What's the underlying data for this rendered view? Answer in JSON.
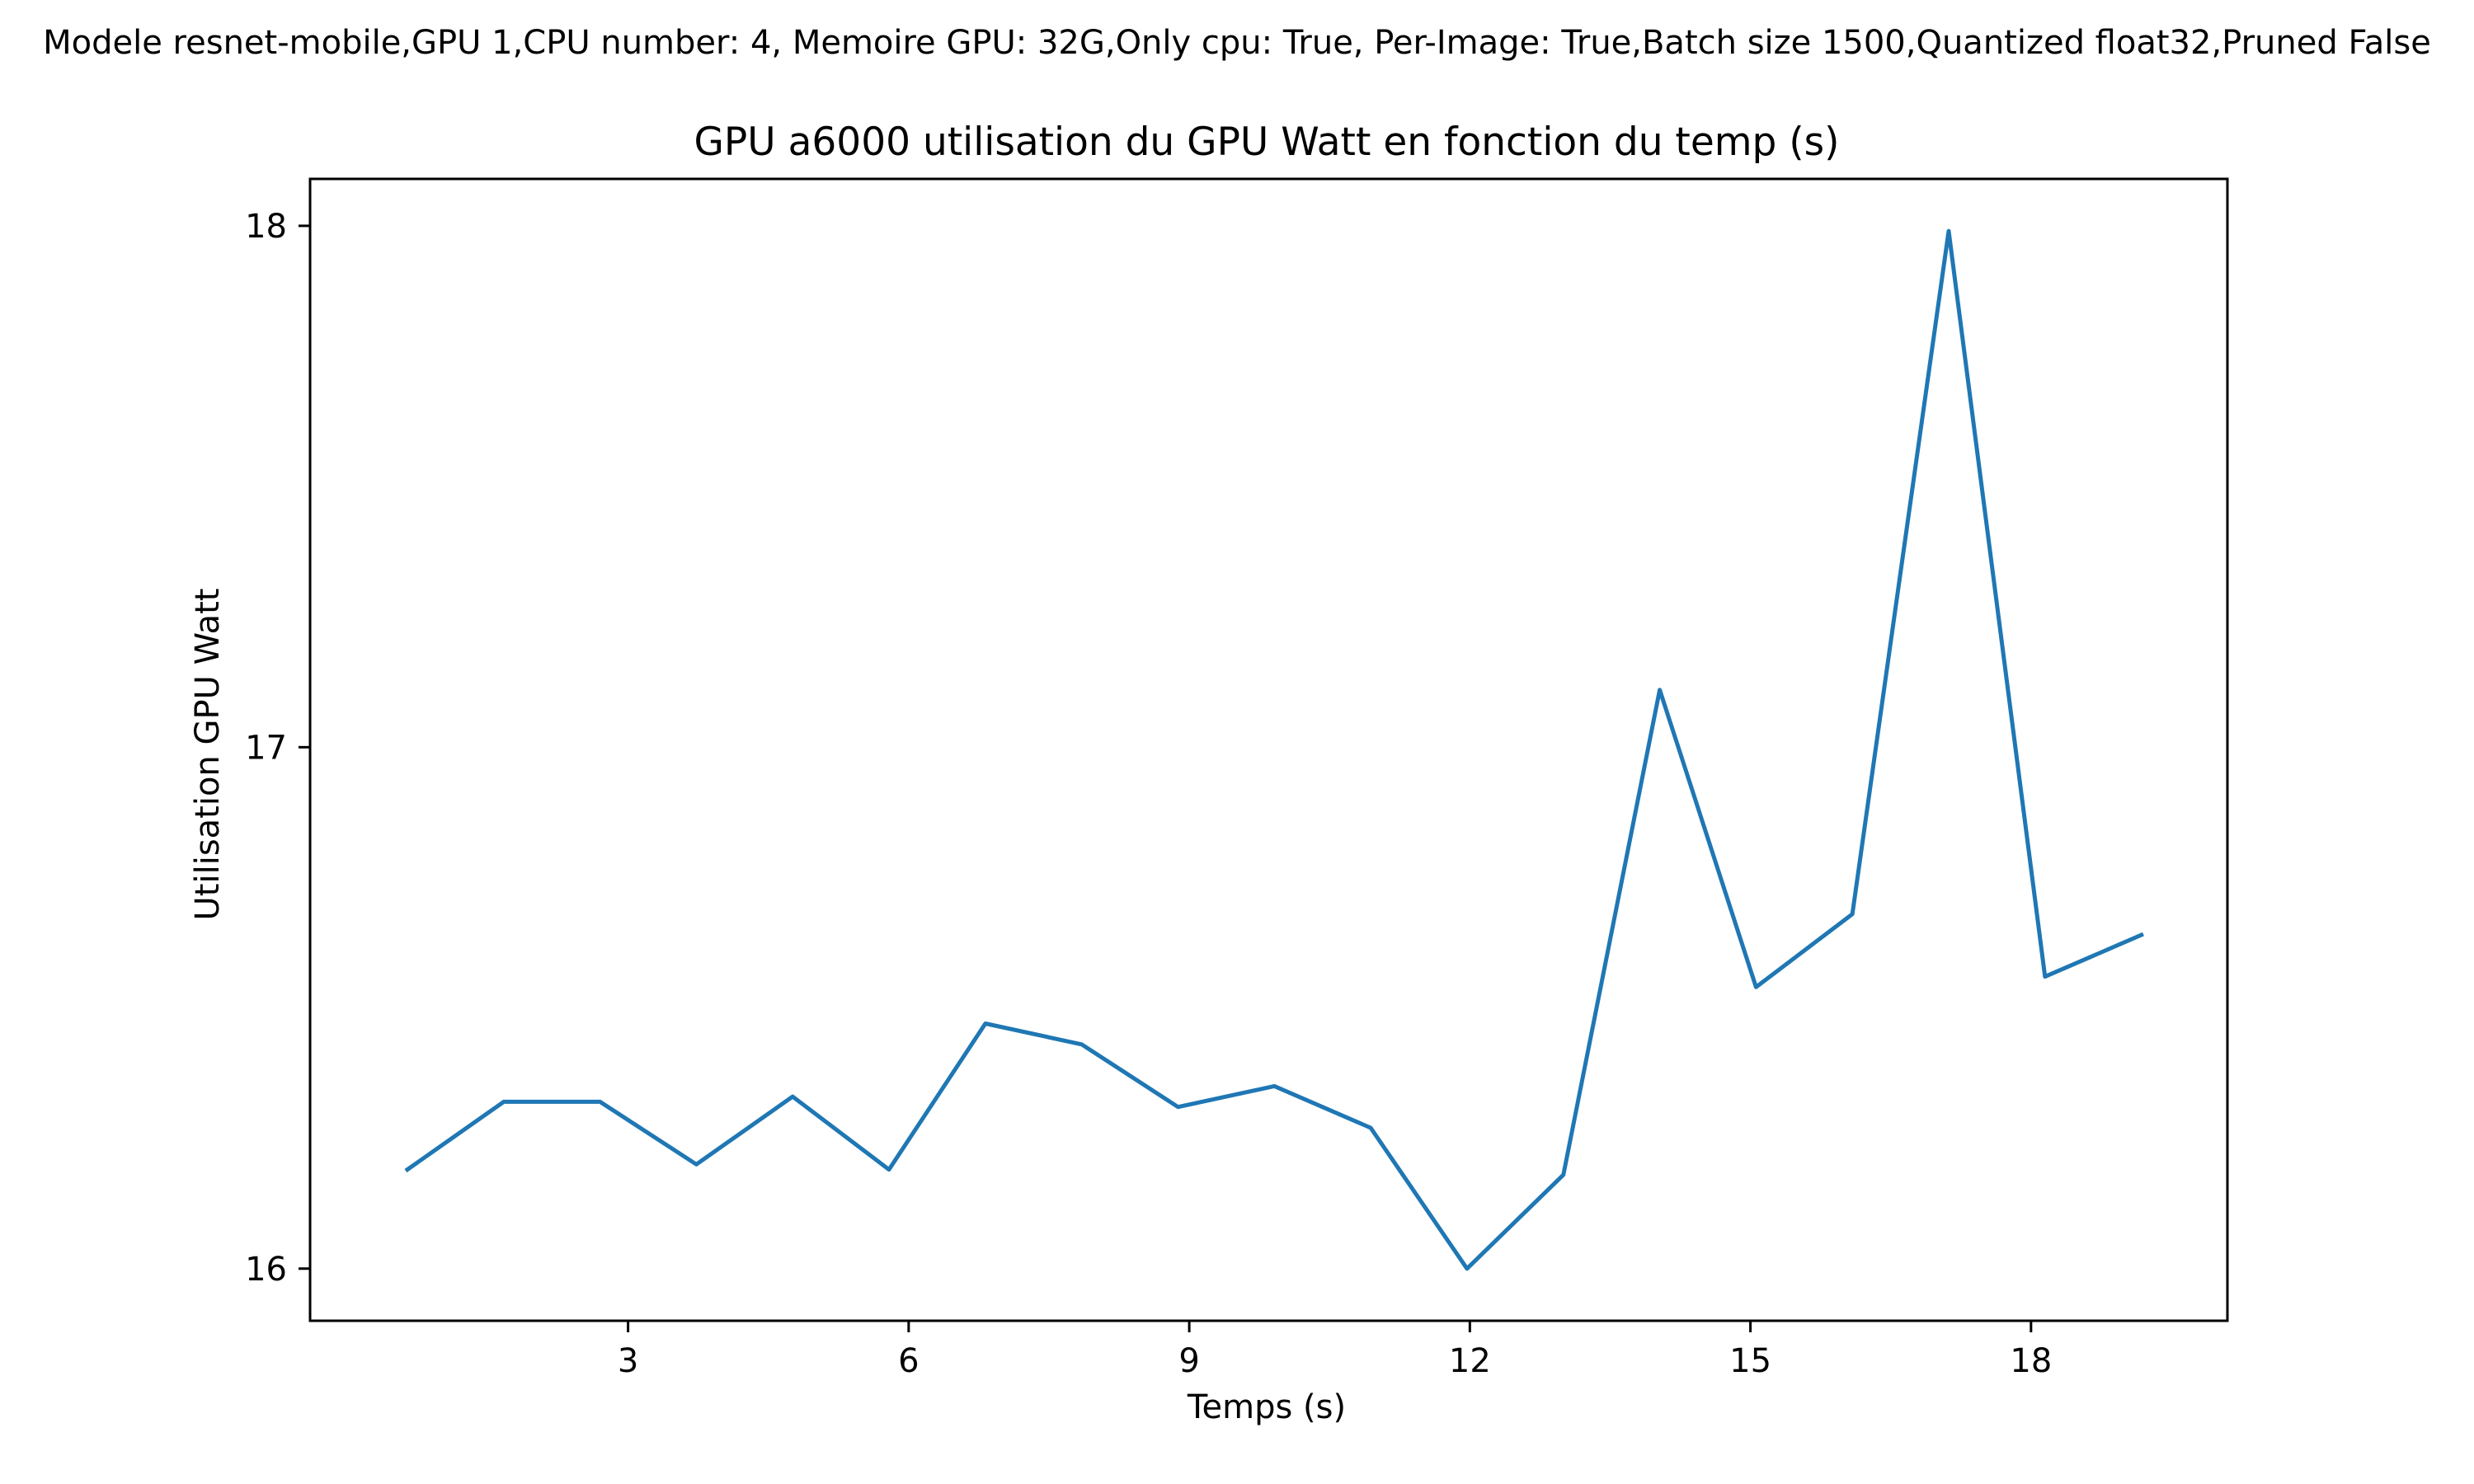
{
  "chart_data": {
    "type": "line",
    "suptitle": "Modele resnet-mobile,GPU 1,CPU number: 4, Memoire GPU: 32G,Only cpu: True, Per-Image: True,Batch size 1500,Quantized float32,Pruned False",
    "title": "GPU a6000 utilisation du GPU Watt en fonction du temp (s)",
    "xlabel": "Temps (s)",
    "ylabel": "Utilisation GPU Watt",
    "xlim": [
      -0.4,
      20.1
    ],
    "ylim": [
      15.9,
      18.09
    ],
    "xticks": [
      3,
      6,
      9,
      12,
      15,
      18
    ],
    "yticks": [
      16,
      17,
      18
    ],
    "grid": false,
    "line_color": "#1f77b4",
    "series": [
      {
        "x": [
          0.64,
          1.67,
          2.7,
          3.73,
          4.76,
          5.79,
          6.82,
          7.85,
          8.88,
          9.91,
          10.94,
          11.97,
          13.0,
          14.03,
          15.06,
          16.09,
          17.12,
          18.15,
          19.18
        ],
        "values": [
          16.19,
          16.32,
          16.32,
          16.2,
          16.33,
          16.19,
          16.47,
          16.43,
          16.31,
          16.35,
          16.27,
          16.0,
          16.18,
          17.11,
          16.54,
          16.68,
          17.99,
          16.56,
          16.64
        ]
      }
    ]
  }
}
